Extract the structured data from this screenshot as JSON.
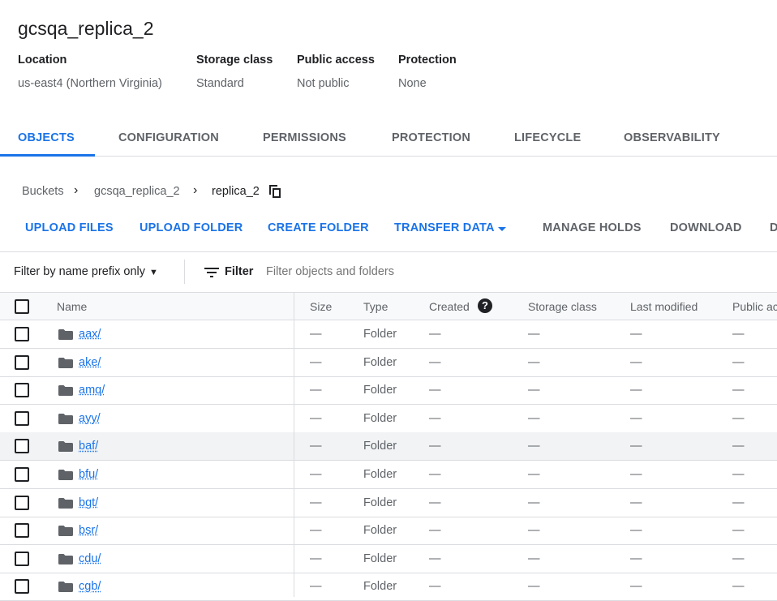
{
  "bucket": {
    "title": "gcsqa_replica_2",
    "meta": [
      {
        "label": "Location",
        "value": "us-east4 (Northern Virginia)"
      },
      {
        "label": "Storage class",
        "value": "Standard"
      },
      {
        "label": "Public access",
        "value": "Not public"
      },
      {
        "label": "Protection",
        "value": "None"
      }
    ]
  },
  "tabs": [
    "OBJECTS",
    "CONFIGURATION",
    "PERMISSIONS",
    "PROTECTION",
    "LIFECYCLE",
    "OBSERVABILITY"
  ],
  "breadcrumb": [
    "Buckets",
    "gcsqa_replica_2",
    "replica_2"
  ],
  "actions": [
    "UPLOAD FILES",
    "UPLOAD FOLDER",
    "CREATE FOLDER",
    "TRANSFER DATA",
    "MANAGE HOLDS",
    "DOWNLOAD",
    "D"
  ],
  "filter": {
    "mode": "Filter by name prefix only",
    "label": "Filter",
    "placeholder": "Filter objects and folders"
  },
  "columns": [
    "Name",
    "Size",
    "Type",
    "Created",
    "Storage class",
    "Last modified",
    "Public ac"
  ],
  "rows": [
    {
      "name": "aax/",
      "size": "—",
      "type": "Folder",
      "created": "—",
      "storage": "—",
      "modified": "—",
      "public": "—"
    },
    {
      "name": "ake/",
      "size": "—",
      "type": "Folder",
      "created": "—",
      "storage": "—",
      "modified": "—",
      "public": "—"
    },
    {
      "name": "amq/",
      "size": "—",
      "type": "Folder",
      "created": "—",
      "storage": "—",
      "modified": "—",
      "public": "—"
    },
    {
      "name": "ayy/",
      "size": "—",
      "type": "Folder",
      "created": "—",
      "storage": "—",
      "modified": "—",
      "public": "—"
    },
    {
      "name": "baf/",
      "size": "—",
      "type": "Folder",
      "created": "—",
      "storage": "—",
      "modified": "—",
      "public": "—"
    },
    {
      "name": "bfu/",
      "size": "—",
      "type": "Folder",
      "created": "—",
      "storage": "—",
      "modified": "—",
      "public": "—"
    },
    {
      "name": "bgt/",
      "size": "—",
      "type": "Folder",
      "created": "—",
      "storage": "—",
      "modified": "—",
      "public": "—"
    },
    {
      "name": "bsr/",
      "size": "—",
      "type": "Folder",
      "created": "—",
      "storage": "—",
      "modified": "—",
      "public": "—"
    },
    {
      "name": "cdu/",
      "size": "—",
      "type": "Folder",
      "created": "—",
      "storage": "—",
      "modified": "—",
      "public": "—"
    },
    {
      "name": "cgb/",
      "size": "—",
      "type": "Folder",
      "created": "—",
      "storage": "—",
      "modified": "—",
      "public": "—"
    }
  ],
  "colors": {
    "accent": "#1a73e8",
    "hover_row": "#f1f3f4"
  }
}
